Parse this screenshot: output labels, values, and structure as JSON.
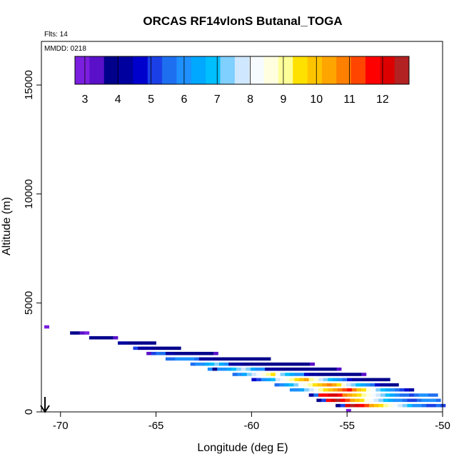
{
  "chart_data": {
    "type": "heatmap",
    "title": "ORCAS RF14vlonS Butanal_TOGA",
    "flights_note": "Flts: 14",
    "date_note": "MMDD: 0218",
    "xlabel": "Longitude (deg E)",
    "ylabel": "Altitude (m)",
    "xlim": [
      -71,
      -50
    ],
    "ylim": [
      0,
      17000
    ],
    "xticks": [
      -70,
      -65,
      -60,
      -55,
      -50
    ],
    "xtick_labels": [
      "-70",
      "-65",
      "-60",
      "-55",
      "-50"
    ],
    "yticks": [
      0,
      5000,
      10000,
      15000
    ],
    "ytick_labels": [
      "0",
      "5000",
      "10000",
      "15000"
    ],
    "colorbar": {
      "min": 2.7,
      "max": 12.8,
      "ticks": [
        3,
        4,
        5,
        6,
        7,
        8,
        9,
        10,
        11,
        12
      ],
      "tick_labels": [
        "3",
        "4",
        "5",
        "6",
        "7",
        "8",
        "9",
        "10",
        "11",
        "12"
      ],
      "colors": [
        "#7a1fe0",
        "#5a10c8",
        "#00008b",
        "#00009e",
        "#0000cd",
        "#1a3fe6",
        "#1e6ff0",
        "#1e90ff",
        "#00a8ff",
        "#00bfff",
        "#7fcfff",
        "#cfe8ff",
        "#f5fbff",
        "#ffffe0",
        "#ffff99",
        "#ffe100",
        "#ffc400",
        "#ffa500",
        "#ff7f00",
        "#ff4500",
        "#ff0000",
        "#dc0000",
        "#b22222"
      ]
    },
    "bin_size": {
      "lon": 0.25,
      "alt": 150
    },
    "segments": [
      {
        "lon_start": -70.85,
        "alt": 3900,
        "values": [
          3.0
        ]
      },
      {
        "lon_start": -69.5,
        "alt": 3620,
        "values": [
          3.8,
          3.6,
          3.2,
          3.0
        ]
      },
      {
        "lon_start": -68.5,
        "alt": 3400,
        "values": [
          4.0,
          3.9,
          3.8,
          3.7,
          3.6,
          3.3
        ]
      },
      {
        "lon_start": -67.0,
        "alt": 3160,
        "values": [
          4.2,
          4.1,
          4.0,
          3.9,
          3.9,
          3.8,
          3.8,
          3.7
        ]
      },
      {
        "lon_start": -66.2,
        "alt": 2920,
        "values": [
          5.0,
          4.4,
          4.2,
          4.1,
          4.0,
          4.0,
          3.9,
          3.9,
          3.8,
          3.6
        ]
      },
      {
        "lon_start": -65.5,
        "alt": 2680,
        "values": [
          3.3,
          5.2,
          5.4,
          5.5,
          4.2,
          4.1,
          4.0,
          4.0,
          3.9,
          3.9,
          3.8,
          3.8,
          3.9,
          3.7,
          3.5
        ]
      },
      {
        "lon_start": -64.5,
        "alt": 2430,
        "values": [
          5.4,
          5.7,
          5.9,
          6.0,
          6.1,
          5.8,
          5.6,
          4.3,
          4.2,
          4.1,
          4.0,
          4.0,
          3.9,
          3.9,
          3.9,
          3.8,
          3.8,
          3.9,
          3.8,
          3.7,
          3.7,
          3.6
        ]
      },
      {
        "lon_start": -63.2,
        "alt": 2190,
        "values": [
          5.6,
          5.9,
          6.1,
          6.4,
          6.8,
          7.1,
          6.3,
          5.8,
          4.4,
          4.2,
          4.1,
          4.0,
          4.0,
          3.9,
          3.9,
          3.8,
          3.8,
          3.9,
          4.0,
          3.8,
          3.8,
          3.7,
          3.7,
          3.6,
          3.6,
          3.5
        ]
      },
      {
        "lon_start": -62.3,
        "alt": 1960,
        "values": [
          6.0,
          3.8,
          5.8,
          6.0,
          6.5,
          7.0,
          7.5,
          7.9,
          7.2,
          6.5,
          6.0,
          5.8,
          4.4,
          4.2,
          4.1,
          4.0,
          4.0,
          3.9,
          3.9,
          3.8,
          3.8,
          3.9,
          4.0,
          3.8,
          3.8,
          3.7,
          3.6,
          3.5
        ]
      },
      {
        "lon_start": -61.0,
        "alt": 1720,
        "values": [
          5.5,
          6.0,
          6.5,
          7.1,
          7.8,
          8.2,
          8.5,
          8.9,
          9.4,
          8.2,
          7.5,
          6.9,
          6.5,
          6.2,
          5.8,
          4.5,
          4.3,
          4.2,
          4.0,
          4.0,
          3.9,
          3.9,
          3.8,
          3.8,
          3.7,
          3.7,
          3.6,
          3.3
        ]
      },
      {
        "lon_start": -60.0,
        "alt": 1480,
        "values": [
          4.5,
          5.0,
          6.2,
          6.6,
          7.0,
          7.6,
          8.2,
          8.8,
          9.2,
          9.6,
          10.0,
          10.3,
          9.2,
          8.5,
          7.8,
          7.2,
          6.8,
          6.4,
          6.0,
          5.5,
          4.5,
          4.2,
          4.1,
          4.0,
          4.0,
          3.9,
          3.8,
          3.7,
          3.6
        ]
      },
      {
        "lon_start": -58.8,
        "alt": 1240,
        "values": [
          5.6,
          6.0,
          6.4,
          7.0,
          7.5,
          8.0,
          8.5,
          9.0,
          9.5,
          10.0,
          10.4,
          10.8,
          10.2,
          9.3,
          8.6,
          7.9,
          7.3,
          6.8,
          6.4,
          6.0,
          5.5,
          4.8,
          4.4,
          4.2,
          4.0,
          3.9
        ]
      },
      {
        "lon_start": -58.0,
        "alt": 1010,
        "values": [
          5.8,
          6.1,
          6.6,
          7.2,
          7.8,
          8.4,
          9.0,
          9.5,
          10.0,
          10.5,
          10.9,
          11.2,
          11.5,
          10.8,
          10.0,
          9.3,
          8.6,
          8.0,
          7.4,
          6.9,
          6.4,
          6.0,
          5.6,
          5.2,
          4.6,
          4.2
        ]
      },
      {
        "lon_start": -57.0,
        "alt": 770,
        "values": [
          4.2,
          5.4,
          11.6,
          11.8,
          12.0,
          12.2,
          11.6,
          11.0,
          10.5,
          10.0,
          9.5,
          9.0,
          8.5,
          8.0,
          7.6,
          7.2,
          6.8,
          6.4,
          6.0,
          5.7,
          5.4,
          5.2,
          5.5,
          6.0,
          5.8,
          5.6,
          5.5
        ]
      },
      {
        "lon_start": -56.6,
        "alt": 530,
        "values": [
          4.0,
          5.2,
          11.8,
          12.2,
          12.4,
          11.8,
          11.2,
          10.6,
          10.0,
          9.4,
          8.8,
          8.3,
          7.8,
          7.4,
          7.0,
          6.6,
          6.2,
          5.9,
          5.6,
          5.3,
          5.1,
          5.4,
          5.9,
          6.1,
          5.9,
          5.6
        ]
      },
      {
        "lon_start": -55.6,
        "alt": 290,
        "values": [
          4.0,
          5.0,
          12.2,
          12.4,
          12.1,
          11.6,
          11.1,
          10.6,
          10.1,
          9.6,
          9.1,
          8.6,
          8.1,
          7.6,
          7.2,
          6.8,
          6.2,
          5.8,
          5.4,
          5.1,
          5.3,
          5.6,
          5.2
        ]
      },
      {
        "lon_start": -55.05,
        "alt": 60,
        "values": [
          3.1
        ]
      }
    ]
  }
}
